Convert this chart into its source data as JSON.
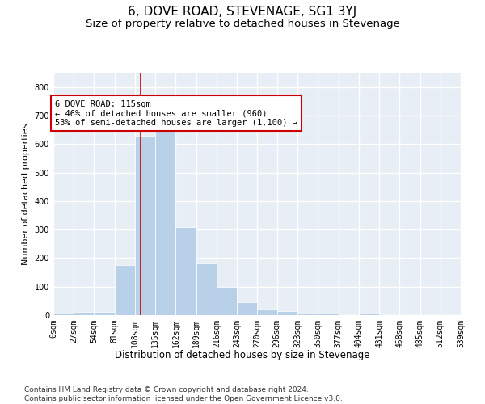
{
  "title": "6, DOVE ROAD, STEVENAGE, SG1 3YJ",
  "subtitle": "Size of property relative to detached houses in Stevenage",
  "xlabel": "Distribution of detached houses by size in Stevenage",
  "ylabel": "Number of detached properties",
  "bar_color": "#b8d0e8",
  "bar_edgecolor": "#ffffff",
  "background_color": "#e8eef5",
  "grid_color": "#ffffff",
  "annotation_box_color": "#cc0000",
  "vline_color": "#cc0000",
  "vline_x": 115,
  "bin_edges": [
    0,
    27,
    54,
    81,
    108,
    135,
    162,
    189,
    216,
    243,
    270,
    296,
    323,
    350,
    377,
    404,
    431,
    458,
    485,
    512,
    539
  ],
  "bar_heights": [
    5,
    10,
    10,
    175,
    630,
    645,
    310,
    180,
    100,
    45,
    20,
    15,
    5,
    5,
    0,
    5,
    0,
    0,
    0,
    0
  ],
  "ylim": [
    0,
    850
  ],
  "yticks": [
    0,
    100,
    200,
    300,
    400,
    500,
    600,
    700,
    800
  ],
  "annotation_text": "6 DOVE ROAD: 115sqm\n← 46% of detached houses are smaller (960)\n53% of semi-detached houses are larger (1,100) →",
  "footer_text": "Contains HM Land Registry data © Crown copyright and database right 2024.\nContains public sector information licensed under the Open Government Licence v3.0.",
  "title_fontsize": 11,
  "subtitle_fontsize": 9.5,
  "xlabel_fontsize": 8.5,
  "ylabel_fontsize": 8,
  "tick_fontsize": 7,
  "annotation_fontsize": 7.5,
  "footer_fontsize": 6.5
}
